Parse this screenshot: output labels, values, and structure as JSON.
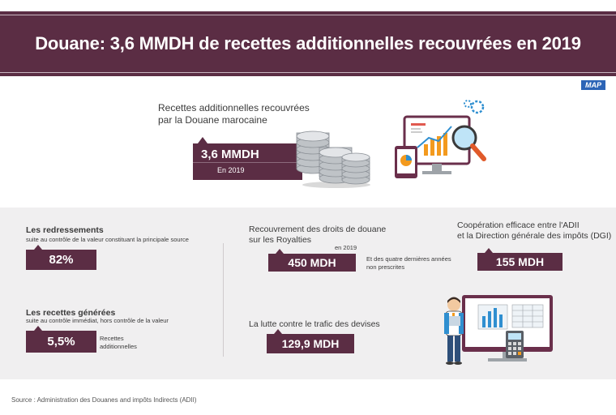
{
  "header": {
    "title": "Douane: 3,6 MMDH de recettes additionnelles recouvrées en 2019",
    "logo": "MAP"
  },
  "hero": {
    "label_line1": "Recettes additionnelles recouvrées",
    "label_line2": "par la Douane marocaine",
    "value": "3,6 MMDH",
    "year": "En 2019"
  },
  "left": {
    "redressements": {
      "title": "Les redressements",
      "subtitle": "suite au contrôle de la valeur constituant la principale source",
      "value": "82%"
    },
    "recettes": {
      "title": "Les recettes générées",
      "subtitle": "suite au contrôle immédiat, hors contrôle de la valeur",
      "value": "5,5%",
      "note_line1": "Recettes",
      "note_line2": "additionnelles"
    }
  },
  "middle": {
    "royalties": {
      "title_line1": "Recouvrement des droits de douane",
      "title_line2": "sur les Royalties",
      "year": "en 2019",
      "value": "450 MDH",
      "note_line1": "Et des quatre dernières années",
      "note_line2": "non prescrites"
    },
    "devises": {
      "title": "La lutte contre le trafic des devises",
      "value": "129,9 MDH"
    }
  },
  "right": {
    "cooperation": {
      "title_line1": "Coopération efficace entre l'ADII",
      "title_line2": "et la Direction générale des impôts (DGI)",
      "value": "155 MDH"
    }
  },
  "footer": {
    "source": "Source : Administration des Douanes and impôts Indirects (ADII)"
  },
  "icons": [
    "coins-stack-icon",
    "analytics-monitor-icon",
    "accountant-person-icon"
  ],
  "colors": {
    "brand": "#5b2d44",
    "panel": "#f0eff0",
    "accent_orange": "#f39a1e",
    "accent_blue": "#2f8fd0"
  }
}
